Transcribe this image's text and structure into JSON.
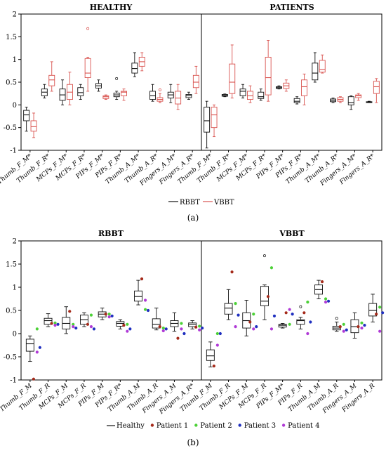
{
  "figure": {
    "sub_labels": [
      "(a)",
      "(b)"
    ]
  },
  "chart_data": [
    {
      "type": "box",
      "panel": "a",
      "subplots": [
        "HEALTHY",
        "PATIENTS"
      ],
      "ylim": [
        -1,
        2
      ],
      "yticks": [
        "-1",
        "-0.5",
        "0",
        "0.5",
        "1",
        "1.5",
        "2"
      ],
      "categories": [
        "Thumb_F_M*",
        "Thumb_F_R*",
        "MCPs_F_M*",
        "MCPs_F_R*",
        "PIPs_F_M*",
        "PIPs_F_R*",
        "Thumb_A_M*",
        "Thumb_A_R*",
        "Fingers_A_M*",
        "Fingers_A_R*"
      ],
      "series": [
        {
          "name": "RBBT",
          "color": "#111111",
          "healthy": [
            {
              "wl": -0.58,
              "q1": -0.35,
              "med": -0.22,
              "q3": -0.12,
              "wh": -0.05
            },
            {
              "wl": 0.15,
              "q1": 0.2,
              "med": 0.28,
              "q3": 0.35,
              "wh": 0.45
            },
            {
              "wl": 0.0,
              "q1": 0.1,
              "med": 0.22,
              "q3": 0.35,
              "wh": 0.55
            },
            {
              "wl": 0.12,
              "q1": 0.2,
              "med": 0.27,
              "q3": 0.38,
              "wh": 0.45
            },
            {
              "wl": 0.3,
              "q1": 0.37,
              "med": 0.42,
              "q3": 0.47,
              "wh": 0.55
            },
            {
              "wl": 0.12,
              "q1": 0.18,
              "med": 0.22,
              "q3": 0.26,
              "wh": 0.3
            },
            {
              "wl": 0.62,
              "q1": 0.7,
              "med": 0.8,
              "q3": 0.92,
              "wh": 1.15
            },
            {
              "wl": 0.08,
              "q1": 0.12,
              "med": 0.2,
              "q3": 0.3,
              "wh": 0.45
            },
            {
              "wl": 0.05,
              "q1": 0.15,
              "med": 0.22,
              "q3": 0.28,
              "wh": 0.45
            },
            {
              "wl": 0.12,
              "q1": 0.16,
              "med": 0.2,
              "q3": 0.23,
              "wh": 0.28
            }
          ],
          "patients": [
            {
              "wl": -0.95,
              "q1": -0.6,
              "med": -0.35,
              "q3": -0.05,
              "wh": 0.08
            },
            {
              "wl": 0.18,
              "q1": 0.19,
              "med": 0.21,
              "q3": 0.23,
              "wh": 0.24
            },
            {
              "wl": 0.15,
              "q1": 0.2,
              "med": 0.3,
              "q3": 0.35,
              "wh": 0.45
            },
            {
              "wl": 0.1,
              "q1": 0.14,
              "med": 0.18,
              "q3": 0.28,
              "wh": 0.35
            },
            {
              "wl": 0.35,
              "q1": 0.36,
              "med": 0.38,
              "q3": 0.4,
              "wh": 0.42
            },
            {
              "wl": 0.02,
              "q1": 0.05,
              "med": 0.08,
              "q3": 0.14,
              "wh": 0.18
            },
            {
              "wl": 0.5,
              "q1": 0.55,
              "med": 0.7,
              "q3": 0.92,
              "wh": 1.15
            },
            {
              "wl": 0.05,
              "q1": 0.07,
              "med": 0.1,
              "q3": 0.13,
              "wh": 0.15
            },
            {
              "wl": -0.1,
              "q1": 0.0,
              "med": 0.05,
              "q3": 0.18,
              "wh": 0.2
            },
            {
              "wl": 0.05,
              "q1": 0.05,
              "med": 0.06,
              "q3": 0.07,
              "wh": 0.08
            }
          ]
        },
        {
          "name": "VBBT",
          "color": "#d9534f",
          "healthy": [
            {
              "wl": -0.72,
              "q1": -0.58,
              "med": -0.48,
              "q3": -0.35,
              "wh": -0.18
            },
            {
              "wl": 0.3,
              "q1": 0.42,
              "med": 0.55,
              "q3": 0.65,
              "wh": 0.95
            },
            {
              "wl": 0.0,
              "q1": 0.12,
              "med": 0.28,
              "q3": 0.45,
              "wh": 0.72
            },
            {
              "wl": 0.3,
              "q1": 0.6,
              "med": 0.7,
              "q3": 1.02,
              "wh": 1.05
            },
            {
              "wl": 0.12,
              "q1": 0.14,
              "med": 0.18,
              "q3": 0.2,
              "wh": 0.22
            },
            {
              "wl": 0.1,
              "q1": 0.2,
              "med": 0.28,
              "q3": 0.3,
              "wh": 0.35
            },
            {
              "wl": 0.75,
              "q1": 0.85,
              "med": 0.95,
              "q3": 1.05,
              "wh": 1.15
            },
            {
              "wl": 0.05,
              "q1": 0.08,
              "med": 0.12,
              "q3": 0.16,
              "wh": 0.25
            },
            {
              "wl": -0.1,
              "q1": 0.02,
              "med": 0.15,
              "q3": 0.3,
              "wh": 0.45
            },
            {
              "wl": 0.25,
              "q1": 0.38,
              "med": 0.5,
              "q3": 0.65,
              "wh": 0.85
            }
          ],
          "patients": [
            {
              "wl": -0.7,
              "q1": -0.5,
              "med": -0.22,
              "q3": -0.05,
              "wh": 0.0
            },
            {
              "wl": 0.15,
              "q1": 0.25,
              "med": 0.5,
              "q3": 0.9,
              "wh": 1.32
            },
            {
              "wl": 0.05,
              "q1": 0.12,
              "med": 0.2,
              "q3": 0.3,
              "wh": 0.42
            },
            {
              "wl": 0.08,
              "q1": 0.22,
              "med": 0.6,
              "q3": 1.05,
              "wh": 1.42
            },
            {
              "wl": 0.3,
              "q1": 0.36,
              "med": 0.42,
              "q3": 0.48,
              "wh": 0.55
            },
            {
              "wl": 0.0,
              "q1": 0.2,
              "med": 0.4,
              "q3": 0.55,
              "wh": 0.68
            },
            {
              "wl": 0.7,
              "q1": 0.72,
              "med": 0.78,
              "q3": 0.98,
              "wh": 1.1
            },
            {
              "wl": 0.05,
              "q1": 0.08,
              "med": 0.12,
              "q3": 0.16,
              "wh": 0.18
            },
            {
              "wl": 0.1,
              "q1": 0.16,
              "med": 0.2,
              "q3": 0.22,
              "wh": 0.25
            },
            {
              "wl": 0.05,
              "q1": 0.25,
              "med": 0.4,
              "q3": 0.52,
              "wh": 0.58
            }
          ]
        }
      ],
      "outliers": [
        {
          "series": "VBBT",
          "group": "healthy",
          "category": 3,
          "y": 1.68
        },
        {
          "series": "RBBT",
          "group": "healthy",
          "category": 5,
          "y": 0.58
        },
        {
          "series": "VBBT",
          "group": "healthy",
          "category": 7,
          "y": 0.33
        }
      ],
      "legend": [
        {
          "label": "RBBT",
          "color": "#111111"
        },
        {
          "label": "VBBT",
          "color": "#d9534f"
        }
      ],
      "legend_position": "bottom-center"
    },
    {
      "type": "box",
      "panel": "b",
      "subplots": [
        "RBBT",
        "VBBT"
      ],
      "ylim": [
        -1,
        2
      ],
      "yticks": [
        "-1",
        "-0.5",
        "0",
        "0.5",
        "1",
        "1.5",
        "2"
      ],
      "subplot_categories": [
        [
          "Thumb_F_M",
          "Thumb_F_R",
          "MCPs_F_M",
          "MCPs_F_R",
          "PIPs_F_M",
          "PIPs_F_R*",
          "Thumb_A_M",
          "Thumb_A_R",
          "Fingers_A_M",
          "Fingers_A_R*"
        ],
        [
          "Thumb_F_M",
          "Thumb_F_R",
          "MCPs_F_M",
          "MCPs_F_R",
          "PIPs_F_M*",
          "PIPs_F_R",
          "Thumb_A_M",
          "Thumb_A_R",
          "Fingers_A_M",
          "Fingers_A_R"
        ]
      ],
      "healthy_boxes": [
        [
          {
            "wl": -0.6,
            "q1": -0.38,
            "med": -0.22,
            "q3": -0.12,
            "wh": -0.05
          },
          {
            "wl": 0.15,
            "q1": 0.2,
            "med": 0.28,
            "q3": 0.33,
            "wh": 0.43
          },
          {
            "wl": 0.0,
            "q1": 0.1,
            "med": 0.22,
            "q3": 0.35,
            "wh": 0.58
          },
          {
            "wl": 0.15,
            "q1": 0.2,
            "med": 0.3,
            "q3": 0.4,
            "wh": 0.45
          },
          {
            "wl": 0.3,
            "q1": 0.36,
            "med": 0.42,
            "q3": 0.47,
            "wh": 0.55
          },
          {
            "wl": 0.1,
            "q1": 0.16,
            "med": 0.22,
            "q3": 0.26,
            "wh": 0.3
          },
          {
            "wl": 0.62,
            "q1": 0.7,
            "med": 0.8,
            "q3": 0.92,
            "wh": 1.15
          },
          {
            "wl": 0.08,
            "q1": 0.12,
            "med": 0.2,
            "q3": 0.32,
            "wh": 0.55
          },
          {
            "wl": 0.05,
            "q1": 0.15,
            "med": 0.22,
            "q3": 0.28,
            "wh": 0.45
          },
          {
            "wl": 0.1,
            "q1": 0.15,
            "med": 0.2,
            "q3": 0.23,
            "wh": 0.28
          }
        ],
        [
          {
            "wl": -0.72,
            "q1": -0.58,
            "med": -0.48,
            "q3": -0.35,
            "wh": -0.18
          },
          {
            "wl": 0.3,
            "q1": 0.42,
            "med": 0.55,
            "q3": 0.65,
            "wh": 0.95
          },
          {
            "wl": -0.05,
            "q1": 0.12,
            "med": 0.28,
            "q3": 0.45,
            "wh": 0.72
          },
          {
            "wl": 0.3,
            "q1": 0.6,
            "med": 0.7,
            "q3": 1.02,
            "wh": 1.05
          },
          {
            "wl": 0.12,
            "q1": 0.14,
            "med": 0.18,
            "q3": 0.2,
            "wh": 0.22
          },
          {
            "wl": 0.1,
            "q1": 0.2,
            "med": 0.28,
            "q3": 0.3,
            "wh": 0.35
          },
          {
            "wl": 0.75,
            "q1": 0.85,
            "med": 0.95,
            "q3": 1.05,
            "wh": 1.15
          },
          {
            "wl": 0.05,
            "q1": 0.08,
            "med": 0.12,
            "q3": 0.16,
            "wh": 0.25
          },
          {
            "wl": -0.1,
            "q1": 0.02,
            "med": 0.15,
            "q3": 0.3,
            "wh": 0.45
          },
          {
            "wl": 0.25,
            "q1": 0.38,
            "med": 0.5,
            "q3": 0.65,
            "wh": 0.85
          }
        ]
      ],
      "patients": [
        {
          "name": "Patient 1",
          "color": "#a52a1a",
          "values": [
            [
              -0.98,
              0.22,
              0.48,
              0.2,
              0.42,
              0.18,
              1.18,
              0.15,
              -0.1,
              0.14
            ],
            [
              -0.7,
              1.33,
              0.25,
              0.8,
              0.45,
              0.45,
              1.12,
              0.15,
              0.15,
              0.42
            ]
          ]
        },
        {
          "name": "Patient 2",
          "color": "#4cd137",
          "values": [
            [
              0.1,
              0.23,
              0.2,
              0.4,
              0.42,
              0.2,
              0.52,
              0.12,
              0.22,
              0.16
            ],
            [
              0.0,
              0.65,
              0.42,
              1.42,
              0.2,
              0.68,
              0.75,
              0.2,
              0.23,
              0.57
            ]
          ]
        },
        {
          "name": "Patient 3",
          "color": "#1f2fbf",
          "values": [
            [
              -0.3,
              0.2,
              0.12,
              0.1,
              0.38,
              0.1,
              0.5,
              0.1,
              0.0,
              0.12
            ],
            [
              0.0,
              0.4,
              0.15,
              0.38,
              0.42,
              0.25,
              0.7,
              0.08,
              0.18,
              0.45
            ]
          ]
        },
        {
          "name": "Patient 4",
          "color": "#b03ad6",
          "values": [
            [
              -0.4,
              0.18,
              0.15,
              0.15,
              0.36,
              0.05,
              0.72,
              0.06,
              0.1,
              0.08
            ],
            [
              -0.25,
              0.15,
              0.1,
              0.1,
              0.52,
              0.0,
              0.68,
              0.05,
              0.12,
              0.05
            ]
          ]
        }
      ],
      "outliers": [
        {
          "subplot": 1,
          "category": 3,
          "y": 1.68
        },
        {
          "subplot": 1,
          "category": 5,
          "y": 0.58
        },
        {
          "subplot": 1,
          "category": 7,
          "y": 0.33
        }
      ],
      "legend": [
        {
          "label": "Healthy",
          "marker": "line",
          "color": "#111111"
        },
        {
          "label": "Patient 1",
          "marker": "dot",
          "color": "#a52a1a"
        },
        {
          "label": "Patient 2",
          "marker": "dot",
          "color": "#4cd137"
        },
        {
          "label": "Patient 3",
          "marker": "dot",
          "color": "#1f2fbf"
        },
        {
          "label": "Patient 4",
          "marker": "dot",
          "color": "#b03ad6"
        }
      ],
      "legend_position": "bottom-center"
    }
  ]
}
